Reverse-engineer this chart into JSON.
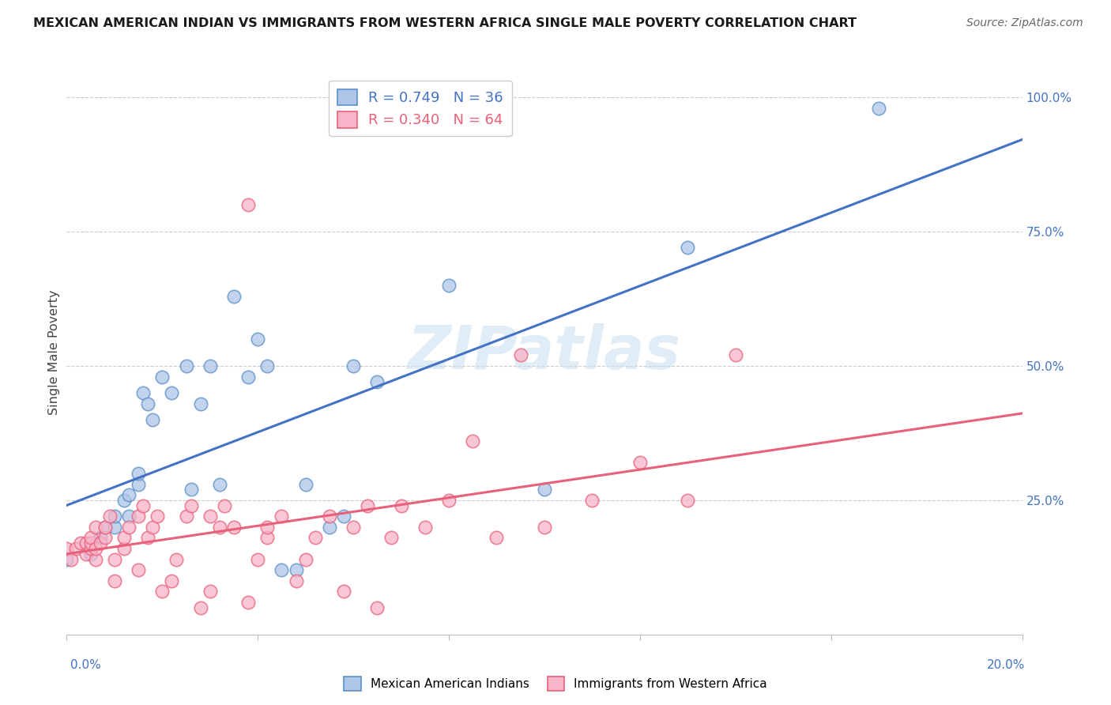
{
  "title": "MEXICAN AMERICAN INDIAN VS IMMIGRANTS FROM WESTERN AFRICA SINGLE MALE POVERTY CORRELATION CHART",
  "source": "Source: ZipAtlas.com",
  "ylabel": "Single Male Poverty",
  "right_ytick_vals": [
    1.0,
    0.75,
    0.5,
    0.25
  ],
  "right_ytick_labels": [
    "100.0%",
    "75.0%",
    "50.0%",
    "25.0%"
  ],
  "legend_bottom": [
    "Mexican American Indians",
    "Immigrants from Western Africa"
  ],
  "blue_R": "0.749",
  "blue_N": "36",
  "pink_R": "0.340",
  "pink_N": "64",
  "blue_fill": "#aec6e8",
  "pink_fill": "#f8b4c8",
  "blue_edge": "#5b8fc9",
  "pink_edge": "#e8607a",
  "blue_line": "#4472c4",
  "pink_line": "#e8607a",
  "watermark": "ZIPatlas",
  "blue_points": [
    [
      0.0,
      0.14
    ],
    [
      0.005,
      0.15
    ],
    [
      0.007,
      0.18
    ],
    [
      0.008,
      0.2
    ],
    [
      0.01,
      0.2
    ],
    [
      0.01,
      0.22
    ],
    [
      0.012,
      0.25
    ],
    [
      0.013,
      0.22
    ],
    [
      0.013,
      0.26
    ],
    [
      0.015,
      0.28
    ],
    [
      0.015,
      0.3
    ],
    [
      0.016,
      0.45
    ],
    [
      0.017,
      0.43
    ],
    [
      0.018,
      0.4
    ],
    [
      0.02,
      0.48
    ],
    [
      0.022,
      0.45
    ],
    [
      0.025,
      0.5
    ],
    [
      0.026,
      0.27
    ],
    [
      0.028,
      0.43
    ],
    [
      0.03,
      0.5
    ],
    [
      0.032,
      0.28
    ],
    [
      0.035,
      0.63
    ],
    [
      0.038,
      0.48
    ],
    [
      0.04,
      0.55
    ],
    [
      0.042,
      0.5
    ],
    [
      0.045,
      0.12
    ],
    [
      0.048,
      0.12
    ],
    [
      0.05,
      0.28
    ],
    [
      0.055,
      0.2
    ],
    [
      0.058,
      0.22
    ],
    [
      0.06,
      0.5
    ],
    [
      0.065,
      0.47
    ],
    [
      0.08,
      0.65
    ],
    [
      0.1,
      0.27
    ],
    [
      0.13,
      0.72
    ],
    [
      0.17,
      0.98
    ]
  ],
  "pink_points": [
    [
      0.0,
      0.16
    ],
    [
      0.001,
      0.14
    ],
    [
      0.002,
      0.16
    ],
    [
      0.003,
      0.17
    ],
    [
      0.004,
      0.15
    ],
    [
      0.004,
      0.17
    ],
    [
      0.005,
      0.16
    ],
    [
      0.005,
      0.17
    ],
    [
      0.005,
      0.18
    ],
    [
      0.006,
      0.2
    ],
    [
      0.006,
      0.14
    ],
    [
      0.006,
      0.16
    ],
    [
      0.007,
      0.17
    ],
    [
      0.008,
      0.18
    ],
    [
      0.008,
      0.2
    ],
    [
      0.009,
      0.22
    ],
    [
      0.01,
      0.1
    ],
    [
      0.01,
      0.14
    ],
    [
      0.012,
      0.16
    ],
    [
      0.012,
      0.18
    ],
    [
      0.013,
      0.2
    ],
    [
      0.015,
      0.12
    ],
    [
      0.015,
      0.22
    ],
    [
      0.016,
      0.24
    ],
    [
      0.017,
      0.18
    ],
    [
      0.018,
      0.2
    ],
    [
      0.019,
      0.22
    ],
    [
      0.02,
      0.08
    ],
    [
      0.022,
      0.1
    ],
    [
      0.023,
      0.14
    ],
    [
      0.025,
      0.22
    ],
    [
      0.026,
      0.24
    ],
    [
      0.028,
      0.05
    ],
    [
      0.03,
      0.08
    ],
    [
      0.03,
      0.22
    ],
    [
      0.032,
      0.2
    ],
    [
      0.033,
      0.24
    ],
    [
      0.035,
      0.2
    ],
    [
      0.038,
      0.06
    ],
    [
      0.04,
      0.14
    ],
    [
      0.042,
      0.18
    ],
    [
      0.042,
      0.2
    ],
    [
      0.045,
      0.22
    ],
    [
      0.048,
      0.1
    ],
    [
      0.05,
      0.14
    ],
    [
      0.052,
      0.18
    ],
    [
      0.055,
      0.22
    ],
    [
      0.058,
      0.08
    ],
    [
      0.06,
      0.2
    ],
    [
      0.063,
      0.24
    ],
    [
      0.065,
      0.05
    ],
    [
      0.068,
      0.18
    ],
    [
      0.07,
      0.24
    ],
    [
      0.075,
      0.2
    ],
    [
      0.08,
      0.25
    ],
    [
      0.085,
      0.36
    ],
    [
      0.09,
      0.18
    ],
    [
      0.095,
      0.52
    ],
    [
      0.1,
      0.2
    ],
    [
      0.11,
      0.25
    ],
    [
      0.12,
      0.32
    ],
    [
      0.13,
      0.25
    ],
    [
      0.14,
      0.52
    ],
    [
      0.038,
      0.8
    ]
  ],
  "xlim": [
    0.0,
    0.2
  ],
  "ylim": [
    0.0,
    1.05
  ],
  "bg_color": "#ffffff",
  "grid_color": "#cccccc"
}
